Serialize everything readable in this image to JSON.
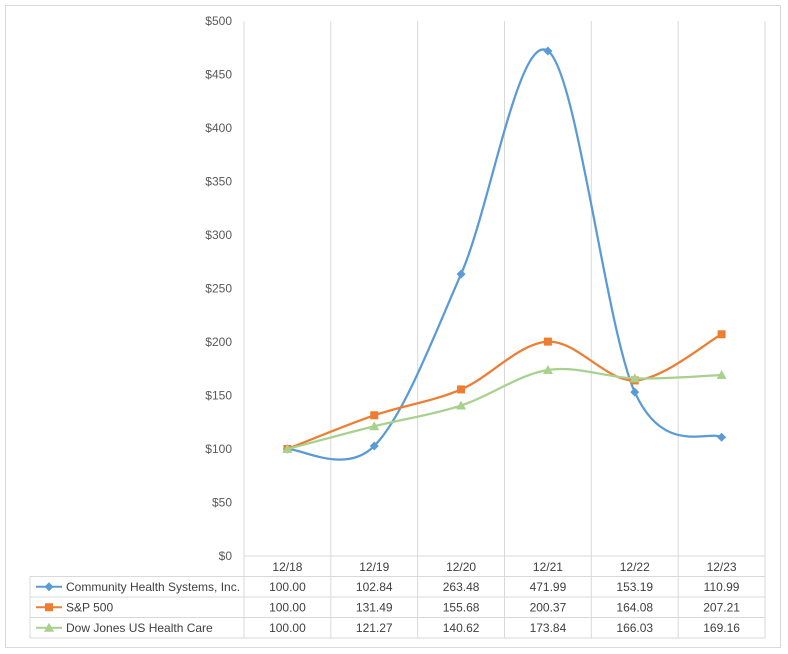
{
  "chart_data": {
    "type": "line",
    "title": "",
    "xlabel": "",
    "ylabel": "",
    "categories": [
      "12/18",
      "12/19",
      "12/20",
      "12/21",
      "12/22",
      "12/23"
    ],
    "ylim": [
      0,
      500
    ],
    "yticks": [
      0,
      50,
      100,
      150,
      200,
      250,
      300,
      350,
      400,
      450,
      500
    ],
    "ytick_labels": [
      "$0",
      "$50",
      "$100",
      "$150",
      "$200",
      "$250",
      "$300",
      "$350",
      "$400",
      "$450",
      "$500"
    ],
    "grid": "vertical",
    "legend": "data-table",
    "smooth": true,
    "series": [
      {
        "name": "Community Health Systems, Inc.",
        "color": "#5b9bd5",
        "marker": "diamond",
        "values": [
          100.0,
          102.84,
          263.48,
          471.99,
          153.19,
          110.99
        ],
        "labels": [
          "100.00",
          "102.84",
          "263.48",
          "471.99",
          "153.19",
          "110.99"
        ]
      },
      {
        "name": "S&P 500",
        "color": "#ed7d31",
        "marker": "square",
        "values": [
          100.0,
          131.49,
          155.68,
          200.37,
          164.08,
          207.21
        ],
        "labels": [
          "100.00",
          "131.49",
          "155.68",
          "200.37",
          "164.08",
          "207.21"
        ]
      },
      {
        "name": "Dow Jones US Health Care",
        "color": "#a9d18e",
        "marker": "triangle",
        "values": [
          100.0,
          121.27,
          140.62,
          173.84,
          166.03,
          169.16
        ],
        "labels": [
          "100.00",
          "121.27",
          "140.62",
          "173.84",
          "166.03",
          "169.16"
        ]
      }
    ]
  }
}
